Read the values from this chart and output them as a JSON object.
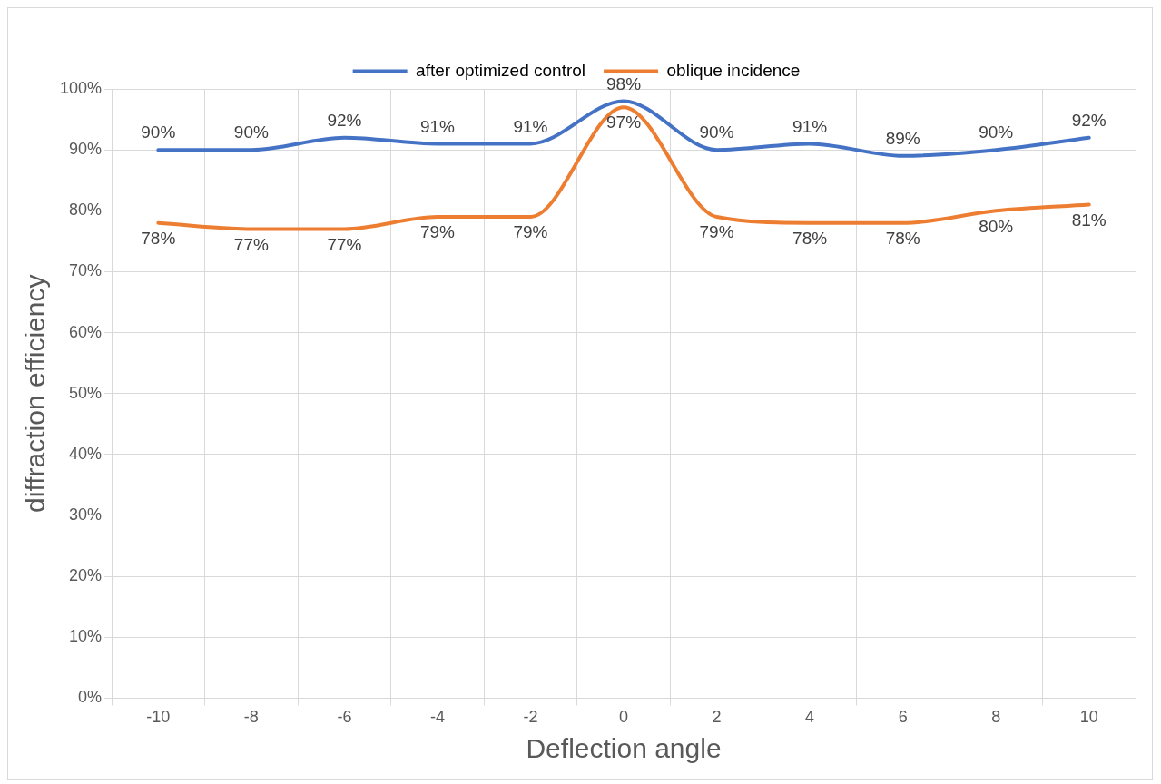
{
  "chart_data": {
    "type": "line",
    "xlabel": "Deflection angle",
    "ylabel": "diffraction efficiency",
    "categories": [
      "-10",
      "-8",
      "-6",
      "-4",
      "-2",
      "0",
      "2",
      "4",
      "6",
      "8",
      "10"
    ],
    "series": [
      {
        "name": "after optimized control",
        "color": "#4472c4",
        "values": [
          90,
          90,
          92,
          91,
          91,
          98,
          90,
          91,
          89,
          90,
          92
        ],
        "value_labels": [
          "90%",
          "90%",
          "92%",
          "91%",
          "91%",
          "98%",
          "90%",
          "91%",
          "89%",
          "90%",
          "92%"
        ]
      },
      {
        "name": "oblique incidence",
        "color": "#ed7d31",
        "values": [
          78,
          77,
          77,
          79,
          79,
          97,
          79,
          78,
          78,
          80,
          81
        ],
        "value_labels": [
          "78%",
          "77%",
          "77%",
          "79%",
          "79%",
          "97%",
          "79%",
          "78%",
          "78%",
          "80%",
          "81%"
        ]
      }
    ],
    "ylim": [
      0,
      100
    ],
    "yticks": [
      {
        "value": 0,
        "label": "0%"
      },
      {
        "value": 10,
        "label": "10%"
      },
      {
        "value": 20,
        "label": "20%"
      },
      {
        "value": 30,
        "label": "30%"
      },
      {
        "value": 40,
        "label": "40%"
      },
      {
        "value": 50,
        "label": "50%"
      },
      {
        "value": 60,
        "label": "60%"
      },
      {
        "value": 70,
        "label": "70%"
      },
      {
        "value": 80,
        "label": "80%"
      },
      {
        "value": 90,
        "label": "90%"
      },
      {
        "value": 100,
        "label": "100%"
      }
    ],
    "grid": true,
    "legend": "top",
    "marker": "none"
  }
}
